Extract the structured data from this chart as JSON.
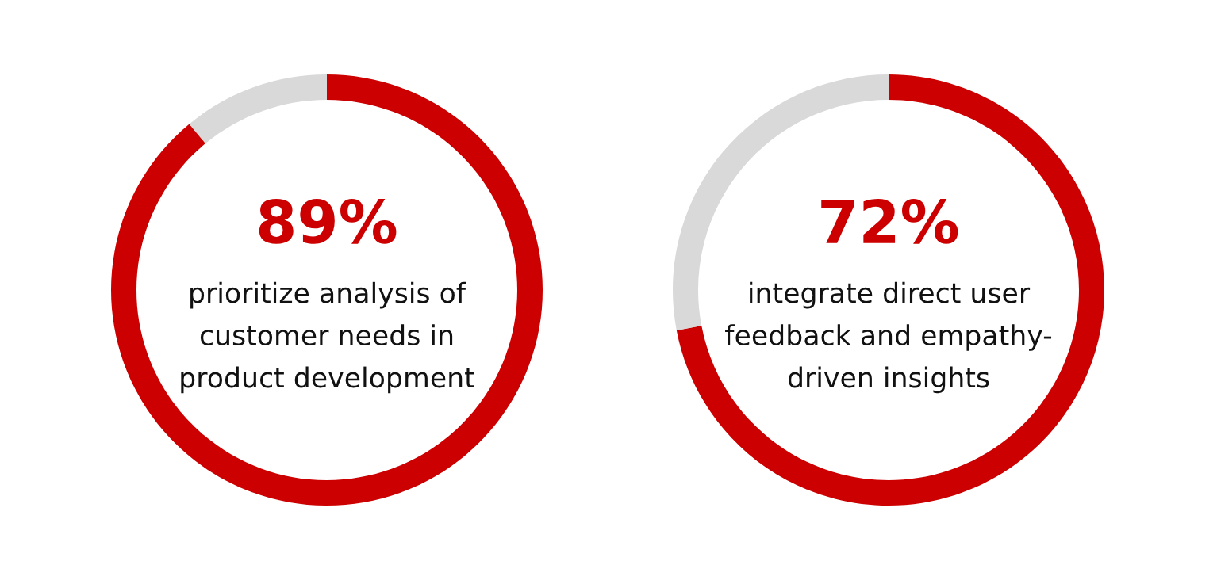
{
  "chart_data": [
    {
      "type": "donut",
      "categories": [
        null,
        null
      ],
      "values": [
        89,
        11
      ],
      "colors": [
        "#cc0000",
        "#d9d9d9"
      ],
      "value_labels": [
        "89%",
        null
      ],
      "annotations": [
        "prioritize analysis of\ncustomer needs in\nproduct development"
      ]
    },
    {
      "type": "donut",
      "categories": [
        null,
        null
      ],
      "values": [
        72,
        28
      ],
      "colors": [
        "#cc0000",
        "#d9d9d9"
      ],
      "value_labels": [
        "72%",
        null
      ],
      "annotations": [
        "integrate direct user\nfeedback and empathy-\ndriven insights"
      ]
    }
  ]
}
